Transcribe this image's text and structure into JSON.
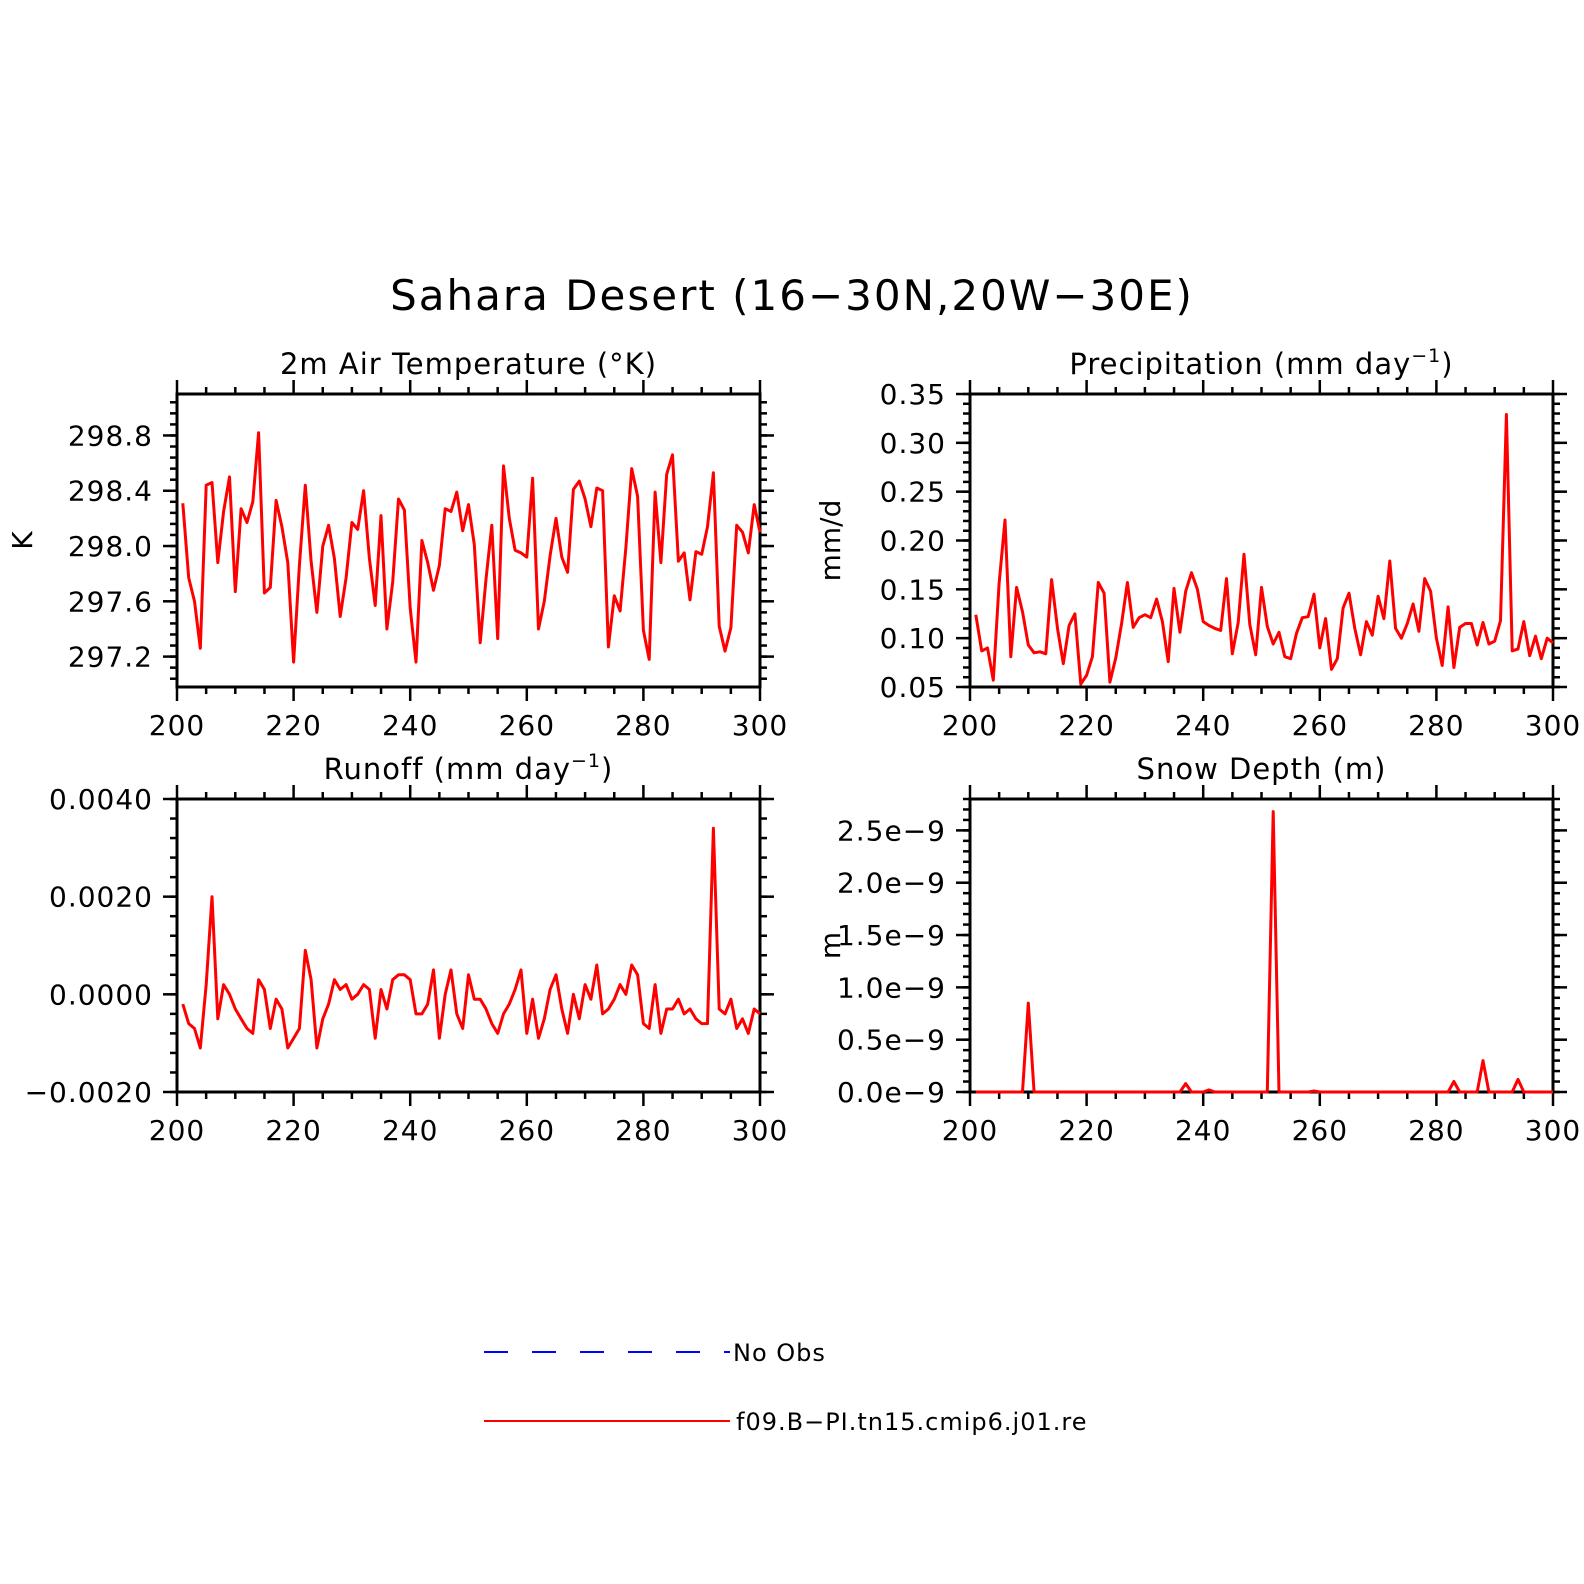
{
  "title": "Sahara Desert (16−30N,20W−30E)",
  "legend": [
    {
      "label": "No Obs",
      "color": "#0000ff",
      "dash": true
    },
    {
      "label": "f09.B−PI.tn15.cmip6.j01.re",
      "color": "#ff0000",
      "dash": false
    }
  ],
  "chart_data": [
    {
      "type": "line",
      "title": "2m Air Temperature (°K)",
      "title_sup": "",
      "title_tail": "",
      "xlabel": "",
      "ylabel": "K",
      "xlim": [
        200,
        300
      ],
      "ylim": [
        296.98,
        299.1
      ],
      "xticks": [
        200,
        220,
        240,
        260,
        280,
        300
      ],
      "xtick_labels": [
        "200",
        "220",
        "240",
        "260",
        "280",
        "300"
      ],
      "yticks": [
        297.2,
        297.6,
        298.0,
        298.4,
        298.8
      ],
      "ytick_labels": [
        "297.2",
        "297.6",
        "298.0",
        "298.4",
        "298.8"
      ],
      "grid": false,
      "series": [
        {
          "color": "#ff0000",
          "x_start": 201,
          "values": [
            298.31,
            297.77,
            297.6,
            297.26,
            298.44,
            298.46,
            297.88,
            298.25,
            298.5,
            297.67,
            298.27,
            298.17,
            298.32,
            298.82,
            297.66,
            297.7,
            298.33,
            298.14,
            297.88,
            297.16,
            297.86,
            298.44,
            297.89,
            297.52,
            298.0,
            298.15,
            297.91,
            297.49,
            297.77,
            298.17,
            298.12,
            298.4,
            297.91,
            297.57,
            298.22,
            297.4,
            297.74,
            298.34,
            298.26,
            297.55,
            297.16,
            298.04,
            297.88,
            297.68,
            297.86,
            298.27,
            298.25,
            298.39,
            298.11,
            298.3,
            298.01,
            297.3,
            297.76,
            298.15,
            297.33,
            298.58,
            298.2,
            297.97,
            297.95,
            297.92,
            298.49,
            297.4,
            297.6,
            297.93,
            298.2,
            297.92,
            297.81,
            298.41,
            298.47,
            298.34,
            298.14,
            298.42,
            298.4,
            297.27,
            297.64,
            297.53,
            297.99,
            298.56,
            298.36,
            297.39,
            297.18,
            298.39,
            297.88,
            298.52,
            298.66,
            297.89,
            297.95,
            297.61,
            297.96,
            297.94,
            298.14,
            298.53,
            297.42,
            297.24,
            297.41,
            298.15,
            298.1,
            297.95,
            298.3,
            298.1
          ]
        }
      ]
    },
    {
      "type": "line",
      "title": "Precipitation (mm day",
      "title_sup": "−1",
      "title_tail": ")",
      "xlabel": "",
      "ylabel": "mm/d",
      "xlim": [
        200,
        300
      ],
      "ylim": [
        0.05,
        0.35
      ],
      "xticks": [
        200,
        220,
        240,
        260,
        280,
        300
      ],
      "xtick_labels": [
        "200",
        "220",
        "240",
        "260",
        "280",
        "300"
      ],
      "yticks": [
        0.05,
        0.1,
        0.15,
        0.2,
        0.25,
        0.3,
        0.35
      ],
      "ytick_labels": [
        "0.05",
        "0.10",
        "0.15",
        "0.20",
        "0.25",
        "0.30",
        "0.35"
      ],
      "grid": false,
      "series": [
        {
          "color": "#ff0000",
          "x_start": 201,
          "values": [
            0.124,
            0.087,
            0.09,
            0.057,
            0.156,
            0.221,
            0.081,
            0.152,
            0.127,
            0.093,
            0.085,
            0.086,
            0.084,
            0.16,
            0.11,
            0.074,
            0.113,
            0.125,
            0.053,
            0.062,
            0.081,
            0.157,
            0.146,
            0.055,
            0.08,
            0.115,
            0.157,
            0.111,
            0.121,
            0.124,
            0.121,
            0.14,
            0.117,
            0.076,
            0.151,
            0.106,
            0.148,
            0.167,
            0.15,
            0.117,
            0.113,
            0.11,
            0.108,
            0.161,
            0.084,
            0.116,
            0.186,
            0.114,
            0.083,
            0.152,
            0.112,
            0.094,
            0.106,
            0.081,
            0.079,
            0.105,
            0.121,
            0.122,
            0.145,
            0.09,
            0.12,
            0.068,
            0.079,
            0.131,
            0.146,
            0.11,
            0.083,
            0.117,
            0.103,
            0.143,
            0.12,
            0.179,
            0.11,
            0.1,
            0.115,
            0.135,
            0.107,
            0.161,
            0.148,
            0.1,
            0.072,
            0.132,
            0.07,
            0.111,
            0.115,
            0.115,
            0.093,
            0.116,
            0.094,
            0.097,
            0.118,
            0.329,
            0.087,
            0.089,
            0.117,
            0.082,
            0.102,
            0.079,
            0.1,
            0.095
          ]
        }
      ]
    },
    {
      "type": "line",
      "title": "Runoff (mm day",
      "title_sup": "−1",
      "title_tail": ")",
      "xlabel": "",
      "ylabel": "",
      "xlim": [
        200,
        300
      ],
      "ylim": [
        -0.002,
        0.004
      ],
      "xticks": [
        200,
        220,
        240,
        260,
        280,
        300
      ],
      "xtick_labels": [
        "200",
        "220",
        "240",
        "260",
        "280",
        "300"
      ],
      "yticks": [
        -0.002,
        0.0,
        0.002,
        0.004
      ],
      "ytick_labels": [
        "−0.0020",
        "0.0000",
        "0.0020",
        "0.0040"
      ],
      "grid": false,
      "series": [
        {
          "color": "#ff0000",
          "x_start": 201,
          "values": [
            -0.0002,
            -0.0006,
            -0.0007,
            -0.0011,
            0.0002,
            0.002,
            -0.0005,
            0.0002,
            0.0,
            -0.0003,
            -0.0005,
            -0.0007,
            -0.0008,
            0.0003,
            0.0001,
            -0.0007,
            -0.0001,
            -0.0003,
            -0.0011,
            -0.0009,
            -0.0007,
            0.0009,
            0.0003,
            -0.0011,
            -0.0005,
            -0.0002,
            0.0003,
            0.0001,
            0.0002,
            -0.0001,
            0.0,
            0.0002,
            0.0001,
            -0.0009,
            0.0001,
            -0.0003,
            0.0003,
            0.0004,
            0.0004,
            0.0003,
            -0.0004,
            -0.0004,
            -0.0002,
            0.0005,
            -0.0009,
            0.0,
            0.0005,
            -0.0004,
            -0.0007,
            0.0004,
            -0.0001,
            -0.0001,
            -0.0003,
            -0.0006,
            -0.0008,
            -0.0004,
            -0.0002,
            0.0001,
            0.0005,
            -0.0008,
            -0.0001,
            -0.0009,
            -0.0005,
            0.0001,
            0.0004,
            -0.0003,
            -0.0008,
            0.0,
            -0.0005,
            0.0002,
            -0.0001,
            0.0006,
            -0.0004,
            -0.0003,
            -0.0001,
            0.0002,
            0.0,
            0.0006,
            0.0004,
            -0.0006,
            -0.0007,
            0.0002,
            -0.0008,
            -0.0003,
            -0.0003,
            -0.0001,
            -0.0004,
            -0.0003,
            -0.0005,
            -0.0006,
            -0.0006,
            0.0034,
            -0.0003,
            -0.0004,
            -0.0001,
            -0.0007,
            -0.0005,
            -0.0008,
            -0.0003,
            -0.0004
          ]
        }
      ]
    },
    {
      "type": "line",
      "title": "Snow Depth (m)",
      "title_sup": "",
      "title_tail": "",
      "xlabel": "",
      "ylabel": "m",
      "xlim": [
        200,
        300
      ],
      "ylim": [
        0,
        2.8
      ],
      "yunit": "e−9",
      "xticks": [
        200,
        220,
        240,
        260,
        280,
        300
      ],
      "xtick_labels": [
        "200",
        "220",
        "240",
        "260",
        "280",
        "300"
      ],
      "yticks": [
        0,
        0.5,
        1.0,
        1.5,
        2.0,
        2.5
      ],
      "ytick_labels": [
        "0.0e−9",
        "0.5e−9",
        "1.0e−9",
        "1.5e−9",
        "2.0e−9",
        "2.5e−9"
      ],
      "grid": false,
      "series": [
        {
          "color": "#ff0000",
          "x_start": 201,
          "values": [
            0,
            0,
            0,
            0,
            0,
            0,
            0,
            0,
            0,
            0.85,
            0,
            0,
            0,
            0,
            0,
            0,
            0,
            0,
            0,
            0,
            0,
            0,
            0,
            0,
            0,
            0,
            0,
            0,
            0,
            0,
            0,
            0,
            0,
            0,
            0,
            0,
            0.08,
            0,
            0,
            0,
            0.02,
            0,
            0,
            0,
            0,
            0,
            0,
            0,
            0,
            0,
            0,
            2.68,
            0,
            0,
            0,
            0,
            0,
            0,
            0.01,
            0,
            0,
            0,
            0,
            0,
            0,
            0,
            0,
            0,
            0,
            0,
            0,
            0,
            0,
            0,
            0,
            0,
            0,
            0,
            0,
            0,
            0,
            0,
            0.1,
            0,
            0,
            0,
            0,
            0.3,
            0,
            0,
            0,
            0,
            0,
            0.12,
            0,
            0,
            0,
            0,
            0,
            0
          ]
        }
      ]
    }
  ]
}
